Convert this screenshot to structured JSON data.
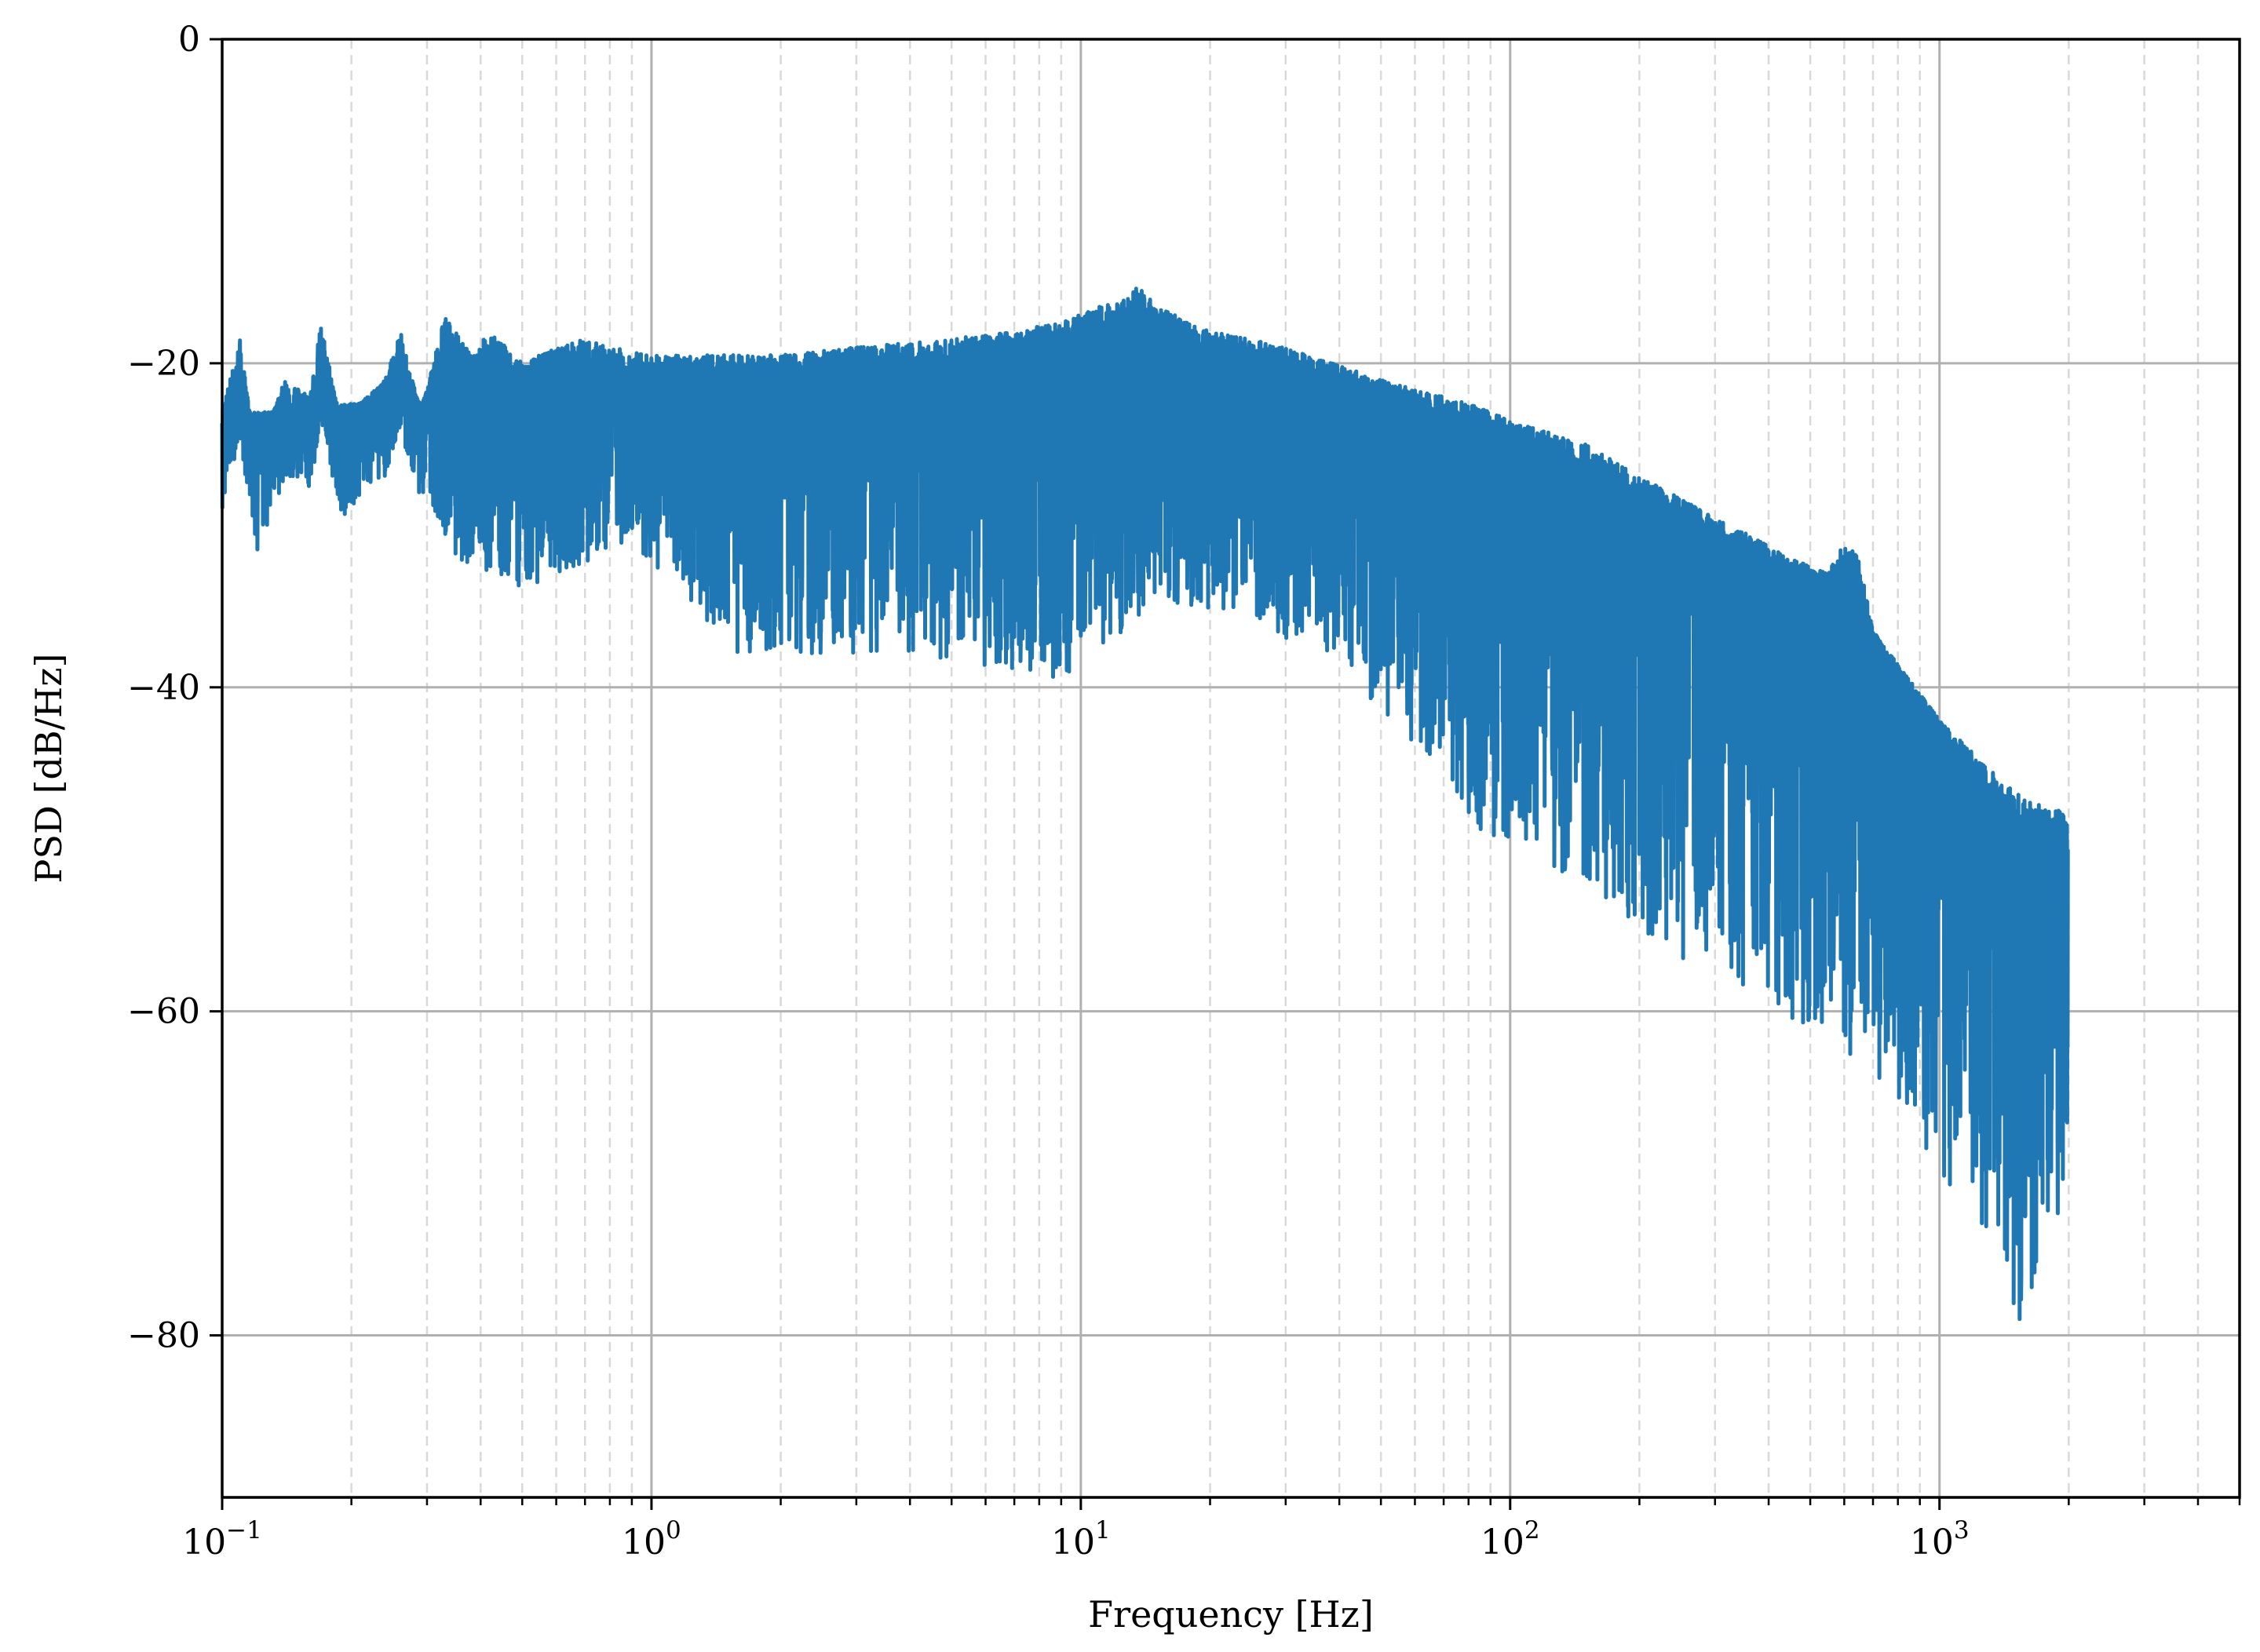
{
  "chart_data": {
    "type": "line",
    "title": "",
    "xlabel": "Frequency [Hz]",
    "ylabel": "PSD [dB/Hz]",
    "xscale": "log",
    "xlim": [
      0.1,
      5000
    ],
    "ylim": [
      -90,
      0
    ],
    "grid": {
      "major": "solid",
      "minor_x": "dashed"
    },
    "legend": "none",
    "colors": {
      "line": "#1f77b4",
      "grid_major": "#b0b0b0",
      "grid_minor": "#d9d9d9",
      "axes": "#000000"
    },
    "x_ticks": [
      {
        "base": "10",
        "exp": "−1",
        "value": 0.1
      },
      {
        "base": "10",
        "exp": "0",
        "value": 1
      },
      {
        "base": "10",
        "exp": "1",
        "value": 10
      },
      {
        "base": "10",
        "exp": "2",
        "value": 100
      },
      {
        "base": "10",
        "exp": "3",
        "value": 1000
      }
    ],
    "y_ticks": [
      {
        "label": "0",
        "value": 0
      },
      {
        "label": "−20",
        "value": -20
      },
      {
        "label": "−40",
        "value": -40
      },
      {
        "label": "−60",
        "value": -60
      },
      {
        "label": "−80",
        "value": -80
      }
    ],
    "series": [
      {
        "upper_envelope": [
          [
            0.1,
            -23
          ],
          [
            0.11,
            -18.5
          ],
          [
            0.12,
            -26
          ],
          [
            0.14,
            -21
          ],
          [
            0.16,
            -22
          ],
          [
            0.17,
            -17.5
          ],
          [
            0.19,
            -24
          ],
          [
            0.2,
            -23
          ],
          [
            0.24,
            -21
          ],
          [
            0.26,
            -18
          ],
          [
            0.29,
            -23
          ],
          [
            0.33,
            -17
          ],
          [
            0.38,
            -19.5
          ],
          [
            0.42,
            -18
          ],
          [
            0.5,
            -20
          ],
          [
            0.6,
            -19
          ],
          [
            0.7,
            -18.5
          ],
          [
            0.8,
            -19
          ],
          [
            1.0,
            -19.5
          ],
          [
            1.5,
            -19.5
          ],
          [
            2.0,
            -19.5
          ],
          [
            3.0,
            -19
          ],
          [
            5.0,
            -18.5
          ],
          [
            7.0,
            -18
          ],
          [
            9.0,
            -17.5
          ],
          [
            11.0,
            -16.5
          ],
          [
            13.0,
            -16
          ],
          [
            13.5,
            -15
          ],
          [
            15,
            -16.5
          ],
          [
            20,
            -18
          ],
          [
            30,
            -19
          ],
          [
            50,
            -21
          ],
          [
            80,
            -22.5
          ],
          [
            100,
            -23.5
          ],
          [
            150,
            -25
          ],
          [
            200,
            -27
          ],
          [
            300,
            -29.5
          ],
          [
            450,
            -32
          ],
          [
            550,
            -33
          ],
          [
            600,
            -31
          ],
          [
            650,
            -32
          ],
          [
            700,
            -36.5
          ],
          [
            850,
            -39.5
          ],
          [
            1000,
            -42
          ],
          [
            1300,
            -45
          ],
          [
            1600,
            -47
          ],
          [
            1800,
            -47.5
          ],
          [
            1990,
            -47.5
          ]
        ],
        "lower_envelope": [
          [
            0.3,
            -28
          ],
          [
            0.35,
            -32
          ],
          [
            0.5,
            -34
          ],
          [
            0.9,
            -31
          ],
          [
            1.6,
            -38
          ],
          [
            4.0,
            -38
          ],
          [
            8.9,
            -39.5
          ],
          [
            15,
            -35
          ],
          [
            20,
            -36
          ],
          [
            40,
            -38
          ],
          [
            50,
            -42
          ],
          [
            70,
            -45
          ],
          [
            82,
            -49
          ],
          [
            150,
            -52
          ],
          [
            250,
            -57
          ],
          [
            400,
            -59
          ],
          [
            500,
            -61.5
          ],
          [
            700,
            -64
          ],
          [
            900,
            -68
          ],
          [
            1050,
            -71
          ],
          [
            1350,
            -74.5
          ],
          [
            1600,
            -81
          ],
          [
            1800,
            -74
          ],
          [
            1990,
            -71
          ]
        ],
        "mid_curve": [
          [
            0.1,
            -23
          ],
          [
            0.15,
            -23
          ],
          [
            0.2,
            -22.5
          ],
          [
            0.5,
            -22
          ],
          [
            1.0,
            -22
          ],
          [
            2.0,
            -22
          ],
          [
            5.0,
            -21.5
          ],
          [
            10.0,
            -20
          ],
          [
            13.0,
            -19
          ],
          [
            20,
            -20.5
          ],
          [
            50,
            -23
          ],
          [
            100,
            -26
          ],
          [
            200,
            -30
          ],
          [
            400,
            -34
          ],
          [
            600,
            -34
          ],
          [
            800,
            -40
          ],
          [
            1000,
            -44
          ],
          [
            1500,
            -50
          ],
          [
            1990,
            -53
          ]
        ]
      }
    ]
  }
}
